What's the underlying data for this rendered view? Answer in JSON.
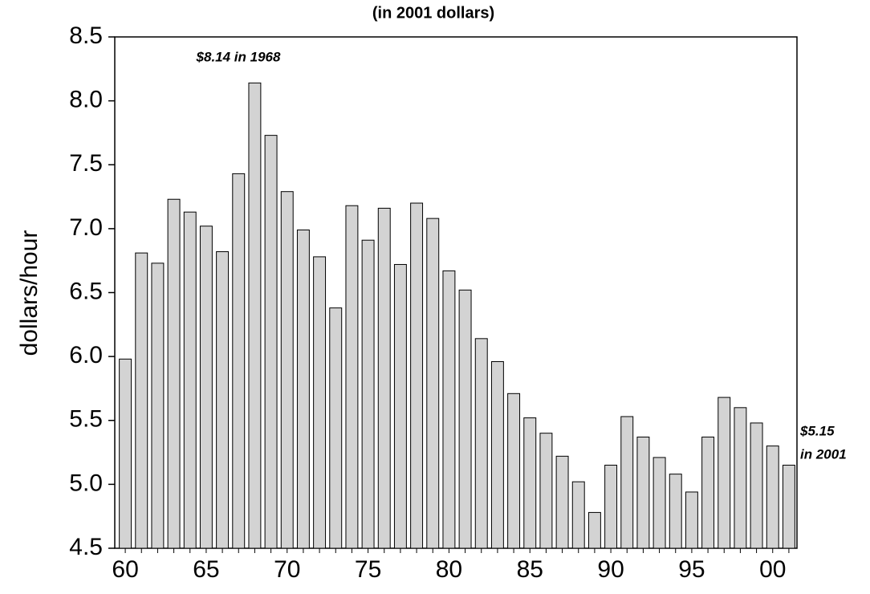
{
  "chart_data": {
    "type": "bar",
    "title": "(in 2001 dollars)",
    "y_label": "dollars/hour",
    "categories": [
      "60",
      null,
      null,
      null,
      null,
      "65",
      null,
      null,
      null,
      null,
      "70",
      null,
      null,
      null,
      null,
      "75",
      null,
      null,
      null,
      null,
      "80",
      null,
      null,
      null,
      null,
      "85",
      null,
      null,
      null,
      null,
      "90",
      null,
      null,
      null,
      null,
      "95",
      null,
      null,
      null,
      null,
      "00",
      null
    ],
    "values": [
      5.98,
      6.81,
      6.73,
      7.23,
      7.13,
      7.02,
      6.82,
      7.43,
      8.14,
      7.73,
      7.29,
      6.99,
      6.78,
      6.38,
      7.18,
      6.91,
      7.16,
      6.72,
      7.2,
      7.08,
      6.67,
      6.52,
      6.14,
      5.96,
      5.71,
      5.52,
      5.4,
      5.22,
      5.02,
      4.78,
      5.15,
      5.53,
      5.37,
      5.21,
      5.08,
      4.94,
      5.37,
      5.68,
      5.6,
      5.48,
      5.3,
      5.15
    ],
    "color": "#d3d3d3",
    "ylim": [
      4.5,
      8.5
    ],
    "yticks": [
      4.5,
      {
        "value": 5,
        "label": "5.0"
      },
      5.5,
      {
        "value": 6,
        "label": "6.0"
      },
      6.5,
      {
        "value": 7,
        "label": "7.0"
      },
      7.5,
      {
        "value": 8,
        "label": "8.0"
      },
      8.5
    ],
    "annotations": [
      [
        "$8.14 in 1968"
      ],
      [
        "$5.15",
        "in 2001"
      ]
    ]
  }
}
